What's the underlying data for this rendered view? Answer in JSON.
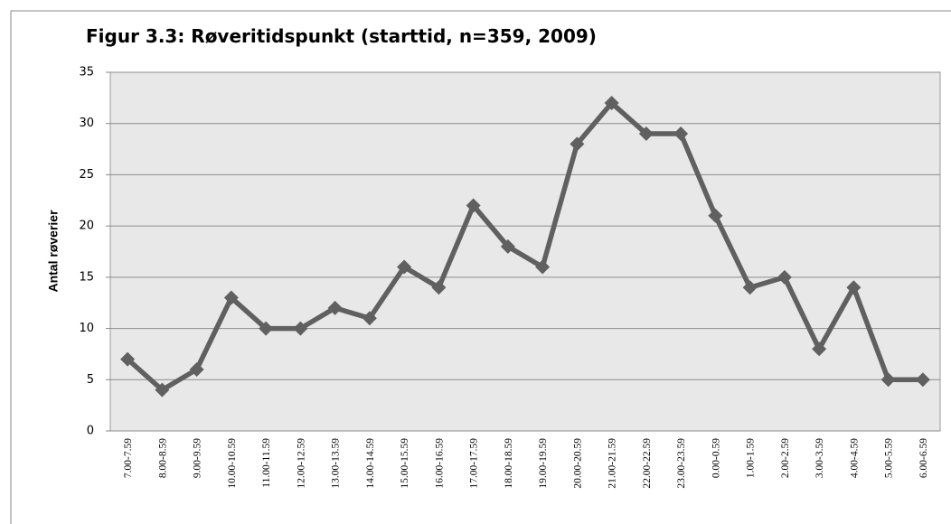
{
  "chart_data": {
    "type": "line",
    "title": "Figur 3.3: Røveritidspunkt (starttid, n=359, 2009)",
    "y_label": "Antal røverier",
    "categories": [
      "7.00-7.59",
      "8.00-8.59",
      "9.00-9.59",
      "10.00-10.59",
      "11.00-11.59",
      "12.00-12.59",
      "13.00-13.59",
      "14.00-14.59",
      "15.00-15.59",
      "16.00-16.59",
      "17.00-17.59",
      "18.00-18.59",
      "19.00-19.59",
      "20.00-20.59",
      "21.00-21.59",
      "22.00-22.59",
      "23.00-23.59",
      "0.00-0.59",
      "1.00-1.59",
      "2.00-2.59",
      "3.00-3.59",
      "4.00-4.59",
      "5.00-5.59",
      "6.00-6.59"
    ],
    "values": [
      7,
      4,
      6,
      13,
      10,
      10,
      12,
      11,
      16,
      14,
      22,
      18,
      16,
      28,
      32,
      29,
      29,
      21,
      14,
      15,
      8,
      14,
      5,
      5
    ],
    "color": "#606060",
    "ylim": [
      0,
      35
    ],
    "yticks": [
      0,
      5,
      10,
      15,
      20,
      25,
      30,
      35
    ],
    "grid": true
  }
}
